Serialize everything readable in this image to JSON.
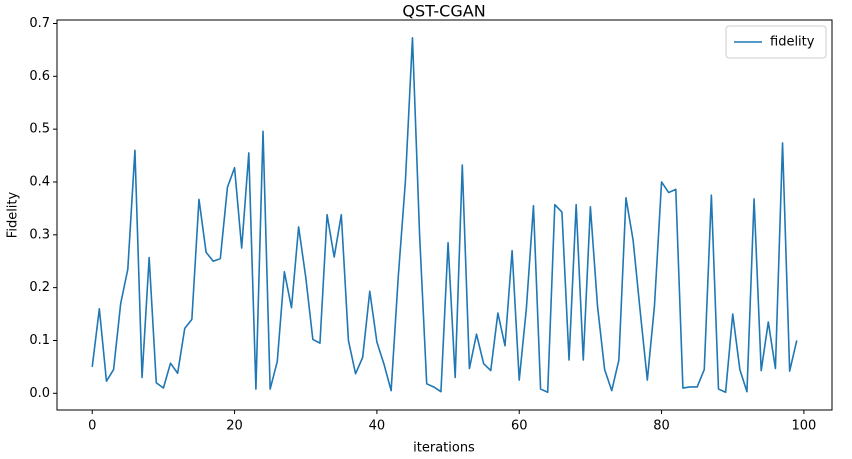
{
  "chart_data": {
    "type": "line",
    "title": "QST-CGAN",
    "xlabel": "iterations",
    "ylabel": "Fidelity",
    "x": [
      0,
      1,
      2,
      3,
      4,
      5,
      6,
      7,
      8,
      9,
      10,
      11,
      12,
      13,
      14,
      15,
      16,
      17,
      18,
      19,
      20,
      21,
      22,
      23,
      24,
      25,
      26,
      27,
      28,
      29,
      30,
      31,
      32,
      33,
      34,
      35,
      36,
      37,
      38,
      39,
      40,
      41,
      42,
      43,
      44,
      45,
      46,
      47,
      48,
      49,
      50,
      51,
      52,
      53,
      54,
      55,
      56,
      57,
      58,
      59,
      60,
      61,
      62,
      63,
      64,
      65,
      66,
      67,
      68,
      69,
      70,
      71,
      72,
      73,
      74,
      75,
      76,
      77,
      78,
      79,
      80,
      81,
      82,
      83,
      84,
      85,
      86,
      87,
      88,
      89,
      90,
      91,
      92,
      93,
      94,
      95,
      96,
      97,
      98,
      99
    ],
    "series": [
      {
        "name": "fidelity",
        "color": "#1f77b4",
        "values": [
          0.05,
          0.16,
          0.023,
          0.045,
          0.17,
          0.235,
          0.46,
          0.03,
          0.257,
          0.02,
          0.01,
          0.057,
          0.038,
          0.123,
          0.14,
          0.367,
          0.267,
          0.25,
          0.255,
          0.39,
          0.427,
          0.275,
          0.455,
          0.008,
          0.496,
          0.008,
          0.06,
          0.23,
          0.162,
          0.315,
          0.22,
          0.102,
          0.095,
          0.338,
          0.258,
          0.338,
          0.1,
          0.037,
          0.068,
          0.193,
          0.097,
          0.055,
          0.005,
          0.22,
          0.4,
          0.673,
          0.3,
          0.018,
          0.012,
          0.003,
          0.285,
          0.03,
          0.432,
          0.047,
          0.112,
          0.056,
          0.043,
          0.152,
          0.09,
          0.27,
          0.025,
          0.16,
          0.355,
          0.008,
          0.002,
          0.357,
          0.343,
          0.063,
          0.357,
          0.063,
          0.353,
          0.165,
          0.045,
          0.005,
          0.063,
          0.37,
          0.29,
          0.155,
          0.025,
          0.165,
          0.4,
          0.38,
          0.386,
          0.01,
          0.012,
          0.012,
          0.045,
          0.375,
          0.008,
          0.002,
          0.15,
          0.045,
          0.003,
          0.368,
          0.043,
          0.135,
          0.047,
          0.474,
          0.042,
          0.1
        ]
      }
    ],
    "xlim": [
      -4.95,
      103.95
    ],
    "xticks": [
      0,
      20,
      40,
      60,
      80,
      100
    ],
    "ylim": [
      -0.0316,
      0.7066
    ],
    "yticks": [
      {
        "value": 0,
        "label": "0.0"
      },
      0.1,
      0.2,
      0.3,
      0.4,
      0.5,
      0.6,
      0.7
    ],
    "legend": "upper right",
    "grid": false
  }
}
